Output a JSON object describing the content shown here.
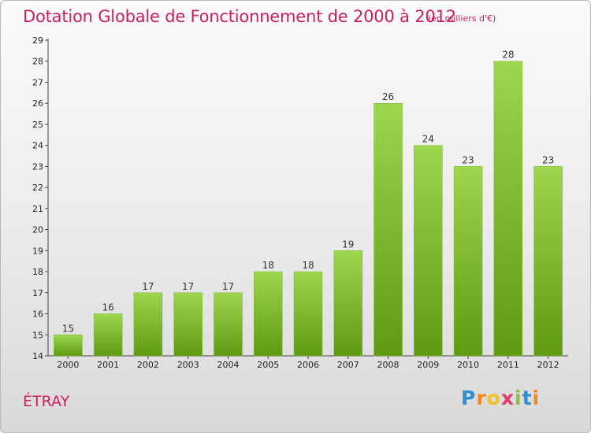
{
  "header": {
    "title": "Dotation Globale de Fonctionnement de 2000 à 2012",
    "subtitle": "(en milliers d'€)"
  },
  "footer": {
    "commune": "ÉTRAY",
    "logo": [
      "P",
      "r",
      "o",
      "x",
      "i",
      "t",
      "i"
    ]
  },
  "colors": {
    "accent": "#cc1f63",
    "bar_top": "#9ed64e",
    "bar_bottom": "#5e9a12"
  },
  "chart_data": {
    "type": "bar",
    "title": "Dotation Globale de Fonctionnement de 2000 à 2012",
    "subtitle": "(en milliers d'€)",
    "categories": [
      "2000",
      "2001",
      "2002",
      "2003",
      "2004",
      "2005",
      "2006",
      "2007",
      "2008",
      "2009",
      "2010",
      "2011",
      "2012"
    ],
    "values": [
      15,
      16,
      17,
      17,
      17,
      18,
      18,
      19,
      26,
      24,
      23,
      28,
      23
    ],
    "ylim": [
      14,
      29
    ],
    "yticks": [
      14,
      15,
      16,
      17,
      18,
      19,
      20,
      21,
      22,
      23,
      24,
      25,
      26,
      27,
      28,
      29
    ],
    "xlabel": "",
    "ylabel": "",
    "grid": false,
    "legend": "none"
  }
}
